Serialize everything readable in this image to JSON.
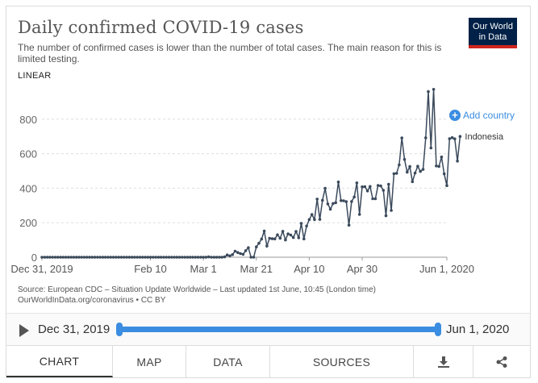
{
  "header": {
    "title": "Daily confirmed COVID-19 cases",
    "subtitle": "The number of confirmed cases is lower than the number of total cases. The main reason for this is limited testing.",
    "logo_line1": "Our World",
    "logo_line2": "in Data",
    "scale_label": "LINEAR"
  },
  "add_country_label": "Add country",
  "footer": {
    "source_line1": "Source: European CDC – Situation Update Worldwide – Last updated 1st June, 10:45 (London time)",
    "source_line2": "OurWorldInData.org/coronavirus • CC BY"
  },
  "timeline": {
    "start_label": "Dec 31, 2019",
    "end_label": "Jun 1, 2020"
  },
  "tabs": [
    {
      "label": "CHART"
    },
    {
      "label": "MAP"
    },
    {
      "label": "DATA"
    },
    {
      "label": "SOURCES"
    }
  ],
  "colors": {
    "line": "#3b4a5c",
    "accent": "#3b8de1",
    "logo_bg": "#002147",
    "logo_bar": "#ce261e"
  },
  "chart_data": {
    "type": "line",
    "title": "Daily confirmed COVID-19 cases",
    "xlabel": "",
    "ylabel": "",
    "xlim": [
      0,
      153
    ],
    "ylim": [
      0,
      1000
    ],
    "y_ticks": [
      0,
      200,
      400,
      600,
      800
    ],
    "x_tick_labels": [
      {
        "day": 0,
        "label": "Dec 31, 2019"
      },
      {
        "day": 41,
        "label": "Feb 10"
      },
      {
        "day": 61,
        "label": "Mar 1"
      },
      {
        "day": 81,
        "label": "Mar 21"
      },
      {
        "day": 101,
        "label": "Apr 10"
      },
      {
        "day": 121,
        "label": "Apr 30"
      },
      {
        "day": 153,
        "label": "Jun 1, 2020"
      }
    ],
    "series": [
      {
        "name": "Indonesia",
        "x_day_start": 0,
        "values": [
          0,
          0,
          0,
          0,
          0,
          0,
          0,
          0,
          0,
          0,
          0,
          0,
          0,
          0,
          0,
          0,
          0,
          0,
          0,
          0,
          0,
          0,
          0,
          0,
          0,
          0,
          0,
          0,
          0,
          0,
          0,
          0,
          0,
          0,
          0,
          0,
          0,
          0,
          0,
          0,
          0,
          0,
          0,
          0,
          0,
          0,
          0,
          0,
          0,
          0,
          0,
          0,
          0,
          0,
          0,
          0,
          0,
          0,
          0,
          0,
          0,
          0,
          0,
          2,
          0,
          0,
          0,
          0,
          0,
          2,
          13,
          8,
          15,
          35,
          27,
          21,
          17,
          38,
          55,
          0,
          0,
          60,
          81,
          105,
          152,
          65,
          110,
          107,
          106,
          130,
          110,
          150,
          100,
          135,
          129,
          114,
          149,
          113,
          196,
          106,
          181,
          218,
          247,
          218,
          337,
          219,
          330,
          399,
          309,
          278,
          311,
          316,
          436,
          328,
          327,
          322,
          186,
          323,
          349,
          431,
          248,
          408,
          409,
          384,
          410,
          339,
          339,
          416,
          413,
          388,
          240,
          423,
          271,
          484,
          486,
          535,
          691,
          567,
          493,
          525,
          438,
          488,
          527,
          497,
          509,
          692,
          960,
          633,
          973,
          529,
          526,
          581,
          483,
          415,
          687,
          693,
          686,
          557,
          700
        ]
      }
    ],
    "end_label": "Indonesia"
  }
}
